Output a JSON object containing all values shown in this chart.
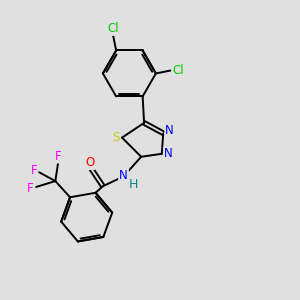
{
  "bg_color": "#e0e0e0",
  "bond_color": "#000000",
  "atom_colors": {
    "Cl": "#00cc00",
    "N": "#0000ff",
    "S": "#cccc00",
    "O": "#ff0000",
    "F": "#ff00ff",
    "H": "#008888",
    "C": "#000000"
  },
  "font_size": 8.5,
  "lw": 1.4
}
